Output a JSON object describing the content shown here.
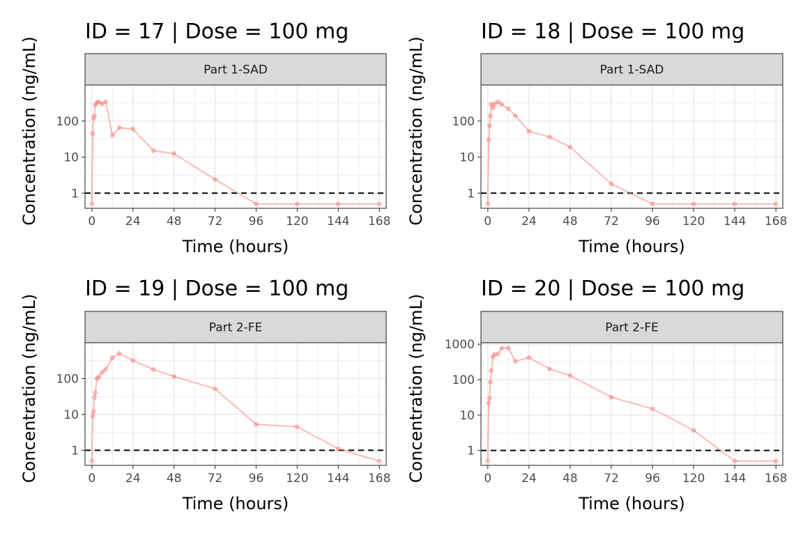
{
  "chart_data": [
    {
      "type": "line",
      "title": "ID = 17 | Dose = 100 mg",
      "strip": "Part 1-SAD",
      "xlabel": "Time (hours)",
      "ylabel": "Concentration (ng/mL)",
      "x_ticks": [
        0,
        24,
        48,
        72,
        96,
        120,
        144,
        168
      ],
      "y_ticks": [
        1,
        10,
        100
      ],
      "x_range": [
        -4,
        172
      ],
      "y_range": [
        0.38,
        1000
      ],
      "y_scale": "log10",
      "reference_line_y": 1,
      "series_color": "#F8766D",
      "x": [
        0,
        0.5,
        1,
        1.5,
        2,
        3,
        4,
        6,
        8,
        12,
        16,
        24,
        36,
        48,
        72,
        96,
        120,
        144,
        168
      ],
      "y": [
        0.5,
        45,
        120,
        140,
        280,
        330,
        340,
        300,
        340,
        40,
        65,
        60,
        15,
        12.5,
        2.4,
        0.5,
        0.5,
        0.5,
        0.5
      ]
    },
    {
      "type": "line",
      "title": "ID = 18 | Dose = 100 mg",
      "strip": "Part 1-SAD",
      "xlabel": "Time (hours)",
      "ylabel": "Concentration (ng/mL)",
      "x_ticks": [
        0,
        24,
        48,
        72,
        96,
        120,
        144,
        168
      ],
      "y_ticks": [
        1,
        10,
        100
      ],
      "x_range": [
        -4,
        172
      ],
      "y_range": [
        0.38,
        1000
      ],
      "y_scale": "log10",
      "reference_line_y": 1,
      "series_color": "#F8766D",
      "x": [
        0,
        0.5,
        1,
        1.5,
        2,
        3,
        4,
        6,
        8,
        12,
        16,
        24,
        36,
        48,
        72,
        96,
        120,
        144,
        168
      ],
      "y": [
        0.5,
        30,
        75,
        140,
        290,
        230,
        300,
        340,
        290,
        220,
        140,
        52,
        36,
        19,
        1.8,
        0.5,
        0.5,
        0.5,
        0.5
      ]
    },
    {
      "type": "line",
      "title": "ID = 19 | Dose = 100 mg",
      "strip": "Part 2-FE",
      "xlabel": "Time (hours)",
      "ylabel": "Concentration (ng/mL)",
      "x_ticks": [
        0,
        24,
        48,
        72,
        96,
        120,
        144,
        168
      ],
      "y_ticks": [
        1,
        10,
        100
      ],
      "x_range": [
        -4,
        172
      ],
      "y_range": [
        0.38,
        1000
      ],
      "y_scale": "log10",
      "reference_line_y": 1,
      "series_color": "#F8766D",
      "x": [
        0,
        0.5,
        1,
        1.5,
        2,
        3,
        4,
        6,
        8,
        12,
        16,
        24,
        36,
        48,
        72,
        96,
        120,
        144,
        168
      ],
      "y": [
        0.5,
        9,
        12,
        30,
        40,
        100,
        110,
        150,
        180,
        380,
        500,
        320,
        180,
        115,
        52,
        5.3,
        4.5,
        1.1,
        0.5
      ]
    },
    {
      "type": "line",
      "title": "ID = 20 | Dose = 100 mg",
      "strip": "Part 2-FE",
      "xlabel": "Time (hours)",
      "ylabel": "Concentration (ng/mL)",
      "x_ticks": [
        0,
        24,
        48,
        72,
        96,
        120,
        144,
        168
      ],
      "y_ticks": [
        1,
        10,
        100,
        1000
      ],
      "x_range": [
        -4,
        172
      ],
      "y_range": [
        0.38,
        1100
      ],
      "y_scale": "log10",
      "reference_line_y": 1,
      "series_color": "#F8766D",
      "x": [
        0,
        0.5,
        1,
        1.5,
        2,
        3,
        4,
        6,
        8,
        12,
        16,
        24,
        36,
        48,
        72,
        96,
        120,
        144,
        168
      ],
      "y": [
        0.5,
        22,
        30,
        85,
        180,
        450,
        510,
        530,
        780,
        780,
        330,
        420,
        200,
        130,
        32,
        15,
        3.7,
        0.5,
        0.5
      ]
    }
  ]
}
